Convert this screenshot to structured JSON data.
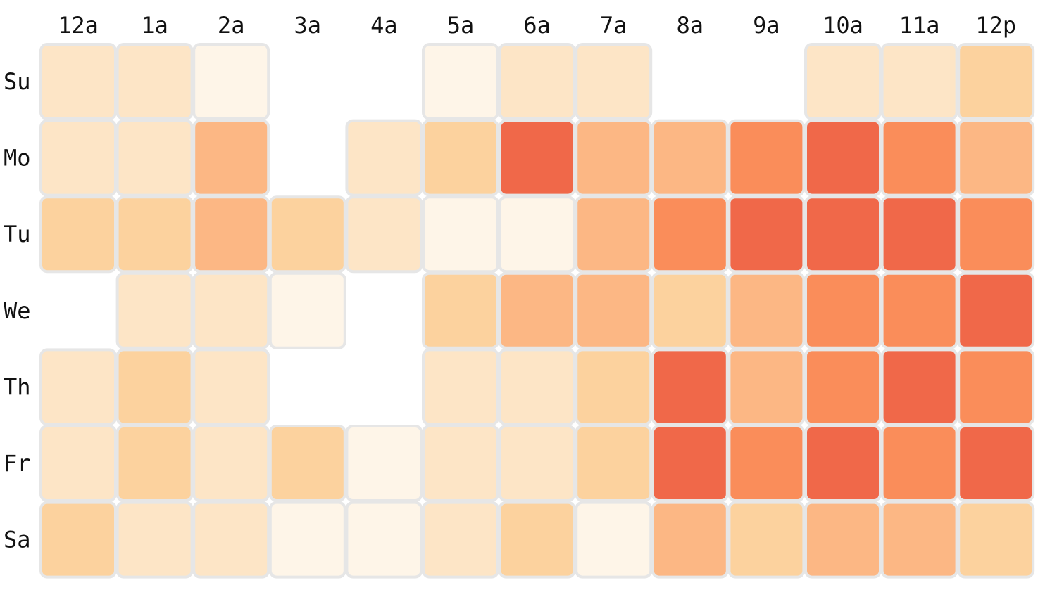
{
  "chart_data": {
    "type": "heatmap",
    "columns": [
      "12a",
      "1a",
      "2a",
      "3a",
      "4a",
      "5a",
      "6a",
      "7a",
      "8a",
      "9a",
      "10a",
      "11a",
      "12p"
    ],
    "rows": [
      "Su",
      "Mo",
      "Tu",
      "We",
      "Th",
      "Fr",
      "Sa"
    ],
    "levels": [
      [
        1,
        1,
        0,
        null,
        null,
        0,
        1,
        1,
        null,
        null,
        1,
        1,
        2
      ],
      [
        1,
        1,
        3,
        null,
        1,
        2,
        5,
        3,
        3,
        4,
        5,
        4,
        3
      ],
      [
        2,
        2,
        3,
        2,
        1,
        0,
        0,
        3,
        4,
        5,
        5,
        5,
        4
      ],
      [
        null,
        1,
        1,
        0,
        null,
        2,
        3,
        3,
        2,
        3,
        4,
        4,
        5
      ],
      [
        1,
        2,
        1,
        null,
        null,
        1,
        1,
        2,
        5,
        3,
        4,
        5,
        4
      ],
      [
        1,
        2,
        1,
        2,
        0,
        1,
        1,
        2,
        5,
        4,
        5,
        4,
        5
      ],
      [
        2,
        1,
        1,
        0,
        0,
        1,
        2,
        0,
        3,
        2,
        3,
        3,
        2
      ]
    ],
    "colors": [
      "#fef5e8",
      "#fde5c6",
      "#fcd29e",
      "#fcb784",
      "#fa8d5a",
      "#f06849"
    ],
    "cell_border_color": "#e6e6e6",
    "empty_color": "#ffffff"
  }
}
